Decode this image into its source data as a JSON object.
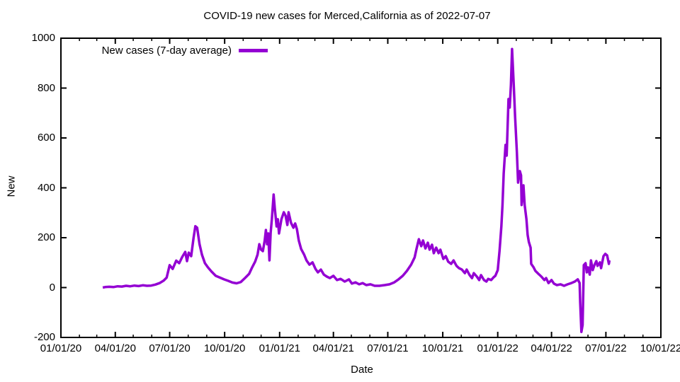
{
  "chart_data": {
    "type": "line",
    "title": "COVID-19 new cases for Merced,California as of 2022-07-07",
    "xlabel": "Date",
    "ylabel": "New",
    "x_range": [
      "2020-01-01",
      "2022-10-01"
    ],
    "ylim": [
      -200,
      1000
    ],
    "y_ticks": [
      -200,
      0,
      200,
      400,
      600,
      800,
      1000
    ],
    "x_ticks": [
      {
        "date": "2020-01-01",
        "label": "01/01/20"
      },
      {
        "date": "2020-04-01",
        "label": "04/01/20"
      },
      {
        "date": "2020-07-01",
        "label": "07/01/20"
      },
      {
        "date": "2020-10-01",
        "label": "10/01/20"
      },
      {
        "date": "2021-01-01",
        "label": "01/01/21"
      },
      {
        "date": "2021-04-01",
        "label": "04/01/21"
      },
      {
        "date": "2021-07-01",
        "label": "07/01/21"
      },
      {
        "date": "2021-10-01",
        "label": "10/01/21"
      },
      {
        "date": "2022-01-01",
        "label": "01/01/22"
      },
      {
        "date": "2022-04-01",
        "label": "04/01/22"
      },
      {
        "date": "2022-07-01",
        "label": "07/01/22"
      },
      {
        "date": "2022-10-01",
        "label": "10/01/22"
      }
    ],
    "minor_x_ticks": "monthly",
    "grid": false,
    "background": "#ffffff",
    "axis_color": "#000000",
    "legend": {
      "position": "top-left-inside",
      "entries": [
        {
          "label": "New cases (7-day average)",
          "color": "#9400D3"
        }
      ]
    },
    "series": [
      {
        "name": "New cases (7-day average)",
        "color": "#9400D3",
        "line_width": 3.5,
        "points": [
          [
            "2020-03-11",
            0
          ],
          [
            "2020-03-15",
            2
          ],
          [
            "2020-03-22",
            3
          ],
          [
            "2020-03-29",
            2
          ],
          [
            "2020-04-05",
            5
          ],
          [
            "2020-04-12",
            4
          ],
          [
            "2020-04-19",
            7
          ],
          [
            "2020-04-26",
            5
          ],
          [
            "2020-05-03",
            8
          ],
          [
            "2020-05-10",
            6
          ],
          [
            "2020-05-17",
            9
          ],
          [
            "2020-05-24",
            7
          ],
          [
            "2020-05-31",
            8
          ],
          [
            "2020-06-07",
            12
          ],
          [
            "2020-06-14",
            18
          ],
          [
            "2020-06-21",
            28
          ],
          [
            "2020-06-26",
            40
          ],
          [
            "2020-07-01",
            90
          ],
          [
            "2020-07-06",
            75
          ],
          [
            "2020-07-12",
            108
          ],
          [
            "2020-07-17",
            98
          ],
          [
            "2020-07-22",
            123
          ],
          [
            "2020-07-27",
            143
          ],
          [
            "2020-07-30",
            106
          ],
          [
            "2020-08-02",
            140
          ],
          [
            "2020-08-06",
            126
          ],
          [
            "2020-08-10",
            200
          ],
          [
            "2020-08-13",
            246
          ],
          [
            "2020-08-16",
            240
          ],
          [
            "2020-08-20",
            174
          ],
          [
            "2020-08-24",
            132
          ],
          [
            "2020-08-29",
            98
          ],
          [
            "2020-09-03",
            81
          ],
          [
            "2020-09-09",
            64
          ],
          [
            "2020-09-16",
            47
          ],
          [
            "2020-09-23",
            40
          ],
          [
            "2020-09-30",
            33
          ],
          [
            "2020-10-07",
            27
          ],
          [
            "2020-10-14",
            20
          ],
          [
            "2020-10-21",
            17
          ],
          [
            "2020-10-28",
            22
          ],
          [
            "2020-11-04",
            38
          ],
          [
            "2020-11-11",
            55
          ],
          [
            "2020-11-16",
            81
          ],
          [
            "2020-11-21",
            104
          ],
          [
            "2020-11-25",
            132
          ],
          [
            "2020-11-28",
            174
          ],
          [
            "2020-12-01",
            152
          ],
          [
            "2020-12-04",
            146
          ],
          [
            "2020-12-07",
            189
          ],
          [
            "2020-12-09",
            231
          ],
          [
            "2020-12-11",
            174
          ],
          [
            "2020-12-13",
            217
          ],
          [
            "2020-12-15",
            109
          ],
          [
            "2020-12-17",
            220
          ],
          [
            "2020-12-19",
            274
          ],
          [
            "2020-12-22",
            373
          ],
          [
            "2020-12-24",
            316
          ],
          [
            "2020-12-27",
            245
          ],
          [
            "2020-12-29",
            274
          ],
          [
            "2020-12-31",
            217
          ],
          [
            "2021-01-04",
            274
          ],
          [
            "2021-01-08",
            302
          ],
          [
            "2021-01-11",
            288
          ],
          [
            "2021-01-14",
            251
          ],
          [
            "2021-01-16",
            302
          ],
          [
            "2021-01-20",
            260
          ],
          [
            "2021-01-24",
            240
          ],
          [
            "2021-01-27",
            257
          ],
          [
            "2021-01-30",
            234
          ],
          [
            "2021-02-02",
            189
          ],
          [
            "2021-02-06",
            155
          ],
          [
            "2021-02-11",
            132
          ],
          [
            "2021-02-15",
            109
          ],
          [
            "2021-02-20",
            92
          ],
          [
            "2021-02-25",
            101
          ],
          [
            "2021-03-02",
            75
          ],
          [
            "2021-03-06",
            61
          ],
          [
            "2021-03-11",
            72
          ],
          [
            "2021-03-16",
            52
          ],
          [
            "2021-03-21",
            44
          ],
          [
            "2021-03-26",
            38
          ],
          [
            "2021-04-01",
            47
          ],
          [
            "2021-04-07",
            30
          ],
          [
            "2021-04-13",
            35
          ],
          [
            "2021-04-20",
            24
          ],
          [
            "2021-04-27",
            33
          ],
          [
            "2021-05-02",
            16
          ],
          [
            "2021-05-08",
            21
          ],
          [
            "2021-05-14",
            13
          ],
          [
            "2021-05-20",
            18
          ],
          [
            "2021-05-26",
            10
          ],
          [
            "2021-06-02",
            13
          ],
          [
            "2021-06-09",
            7
          ],
          [
            "2021-06-17",
            7
          ],
          [
            "2021-06-26",
            10
          ],
          [
            "2021-07-04",
            13
          ],
          [
            "2021-07-12",
            21
          ],
          [
            "2021-07-19",
            33
          ],
          [
            "2021-07-26",
            47
          ],
          [
            "2021-08-02",
            67
          ],
          [
            "2021-08-09",
            92
          ],
          [
            "2021-08-15",
            121
          ],
          [
            "2021-08-18",
            155
          ],
          [
            "2021-08-22",
            194
          ],
          [
            "2021-08-26",
            166
          ],
          [
            "2021-08-29",
            189
          ],
          [
            "2021-09-02",
            157
          ],
          [
            "2021-09-06",
            180
          ],
          [
            "2021-09-09",
            152
          ],
          [
            "2021-09-13",
            172
          ],
          [
            "2021-09-16",
            138
          ],
          [
            "2021-09-20",
            160
          ],
          [
            "2021-09-24",
            138
          ],
          [
            "2021-09-27",
            152
          ],
          [
            "2021-10-02",
            115
          ],
          [
            "2021-10-06",
            126
          ],
          [
            "2021-10-10",
            104
          ],
          [
            "2021-10-15",
            95
          ],
          [
            "2021-10-19",
            109
          ],
          [
            "2021-10-24",
            87
          ],
          [
            "2021-10-28",
            78
          ],
          [
            "2021-11-02",
            72
          ],
          [
            "2021-11-07",
            58
          ],
          [
            "2021-11-10",
            72
          ],
          [
            "2021-11-15",
            50
          ],
          [
            "2021-11-19",
            38
          ],
          [
            "2021-11-22",
            58
          ],
          [
            "2021-11-27",
            44
          ],
          [
            "2021-12-01",
            30
          ],
          [
            "2021-12-04",
            50
          ],
          [
            "2021-12-09",
            30
          ],
          [
            "2021-12-13",
            24
          ],
          [
            "2021-12-16",
            35
          ],
          [
            "2021-12-21",
            30
          ],
          [
            "2021-12-25",
            41
          ],
          [
            "2021-12-28",
            47
          ],
          [
            "2022-01-01",
            70
          ],
          [
            "2022-01-04",
            146
          ],
          [
            "2022-01-07",
            245
          ],
          [
            "2022-01-09",
            331
          ],
          [
            "2022-01-11",
            458
          ],
          [
            "2022-01-14",
            572
          ],
          [
            "2022-01-16",
            529
          ],
          [
            "2022-01-19",
            756
          ],
          [
            "2022-01-21",
            722
          ],
          [
            "2022-01-23",
            813
          ],
          [
            "2022-01-25",
            957
          ],
          [
            "2022-01-28",
            799
          ],
          [
            "2022-01-30",
            685
          ],
          [
            "2022-02-02",
            543
          ],
          [
            "2022-02-04",
            421
          ],
          [
            "2022-02-07",
            467
          ],
          [
            "2022-02-09",
            450
          ],
          [
            "2022-02-10",
            331
          ],
          [
            "2022-02-13",
            410
          ],
          [
            "2022-02-15",
            331
          ],
          [
            "2022-02-18",
            274
          ],
          [
            "2022-02-20",
            211
          ],
          [
            "2022-02-22",
            183
          ],
          [
            "2022-02-25",
            160
          ],
          [
            "2022-02-26",
            95
          ],
          [
            "2022-03-02",
            81
          ],
          [
            "2022-03-05",
            67
          ],
          [
            "2022-03-10",
            55
          ],
          [
            "2022-03-15",
            44
          ],
          [
            "2022-03-20",
            30
          ],
          [
            "2022-03-23",
            38
          ],
          [
            "2022-03-27",
            18
          ],
          [
            "2022-04-01",
            30
          ],
          [
            "2022-04-05",
            16
          ],
          [
            "2022-04-10",
            10
          ],
          [
            "2022-04-16",
            13
          ],
          [
            "2022-04-22",
            7
          ],
          [
            "2022-04-28",
            13
          ],
          [
            "2022-05-04",
            18
          ],
          [
            "2022-05-10",
            24
          ],
          [
            "2022-05-15",
            33
          ],
          [
            "2022-05-18",
            18
          ],
          [
            "2022-05-19",
            -60
          ],
          [
            "2022-05-21",
            -178
          ],
          [
            "2022-05-23",
            -150
          ],
          [
            "2022-05-25",
            90
          ],
          [
            "2022-05-28",
            98
          ],
          [
            "2022-05-30",
            61
          ],
          [
            "2022-06-01",
            81
          ],
          [
            "2022-06-04",
            52
          ],
          [
            "2022-06-06",
            109
          ],
          [
            "2022-06-09",
            70
          ],
          [
            "2022-06-12",
            92
          ],
          [
            "2022-06-15",
            106
          ],
          [
            "2022-06-17",
            87
          ],
          [
            "2022-06-21",
            101
          ],
          [
            "2022-06-23",
            78
          ],
          [
            "2022-06-27",
            126
          ],
          [
            "2022-06-30",
            135
          ],
          [
            "2022-07-03",
            129
          ],
          [
            "2022-07-06",
            95
          ],
          [
            "2022-07-07",
            109
          ]
        ]
      }
    ]
  }
}
